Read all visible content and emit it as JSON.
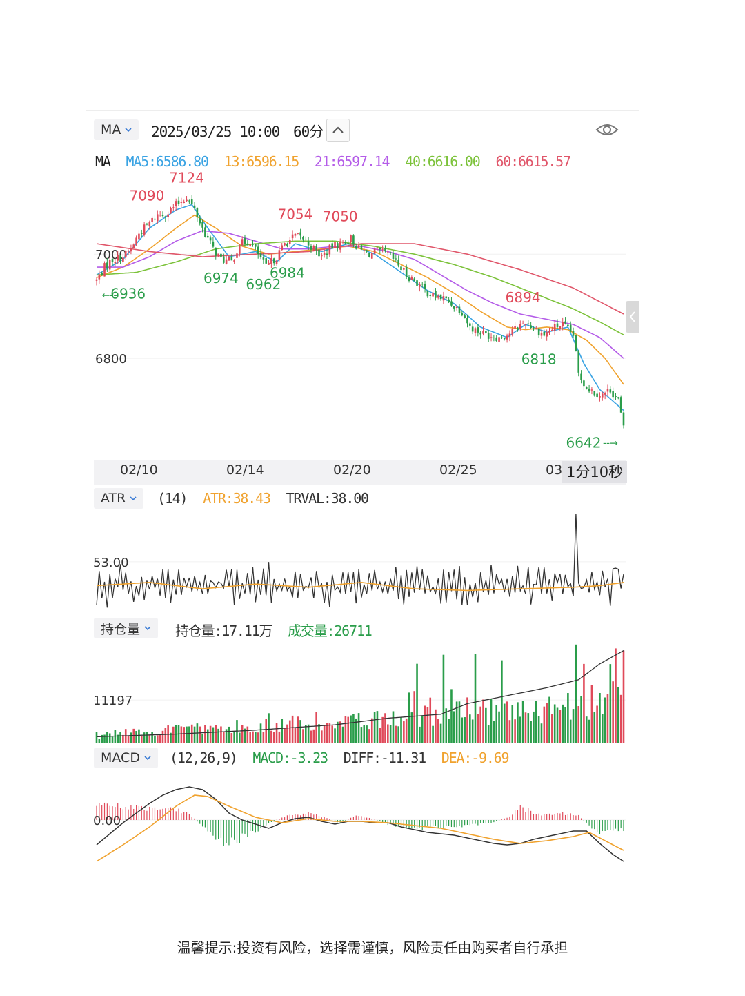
{
  "header": {
    "indicator": "MA",
    "datetime": "2025/03/25 10:00",
    "period": "60分"
  },
  "ma_legend": {
    "name": "MA",
    "items": [
      {
        "text": "MA5:6586.80",
        "color": "#3aa3e3"
      },
      {
        "text": "13:6596.15",
        "color": "#f0a22e"
      },
      {
        "text": "21:6597.14",
        "color": "#b45ce8"
      },
      {
        "text": "40:6616.00",
        "color": "#7cc23a"
      },
      {
        "text": "60:6615.57",
        "color": "#e0566a"
      }
    ]
  },
  "colors": {
    "up": "#e04a5a",
    "down": "#2a9d4a",
    "ma5": "#3aa3e3",
    "ma13": "#f0a22e",
    "ma21": "#b45ce8",
    "ma40": "#7cc23a",
    "ma60": "#e0566a",
    "line": "#333333"
  },
  "chart_data": [
    {
      "type": "candlestick",
      "ylim": [
        6620,
        7150
      ],
      "y_tick_labels": [
        "7000",
        "6800"
      ],
      "y_ticks": [
        7000,
        6800
      ],
      "x_tick_labels": [
        "02/10",
        "02/14",
        "02/20",
        "02/25",
        "03"
      ],
      "countdown": "1分10秒",
      "annotations": [
        {
          "text": "7124",
          "kind": "high",
          "index": 34
        },
        {
          "text": "7090",
          "kind": "high",
          "index": 19
        },
        {
          "text": "7054",
          "kind": "high",
          "index": 75
        },
        {
          "text": "7050",
          "kind": "high",
          "index": 92
        },
        {
          "text": "6894",
          "kind": "high",
          "index": 161
        },
        {
          "text": "6936",
          "kind": "low",
          "index": 2
        },
        {
          "text": "6974",
          "kind": "low",
          "index": 47
        },
        {
          "text": "6962",
          "kind": "low",
          "index": 63
        },
        {
          "text": "6984",
          "kind": "low",
          "index": 72
        },
        {
          "text": "6818",
          "kind": "low",
          "index": 167
        },
        {
          "text": "6642",
          "kind": "low",
          "index": 199
        }
      ],
      "close_path": [
        [
          0,
          6950
        ],
        [
          3,
          6975
        ],
        [
          6,
          6990
        ],
        [
          10,
          6995
        ],
        [
          13,
          7010
        ],
        [
          16,
          7040
        ],
        [
          20,
          7060
        ],
        [
          23,
          7075
        ],
        [
          27,
          7080
        ],
        [
          30,
          7095
        ],
        [
          34,
          7110
        ],
        [
          37,
          7085
        ],
        [
          40,
          7050
        ],
        [
          44,
          7010
        ],
        [
          47,
          6990
        ],
        [
          51,
          6985
        ],
        [
          54,
          7020
        ],
        [
          58,
          7025
        ],
        [
          61,
          7000
        ],
        [
          64,
          6975
        ],
        [
          68,
          6995
        ],
        [
          71,
          7020
        ],
        [
          75,
          7035
        ],
        [
          78,
          7030
        ],
        [
          82,
          7010
        ],
        [
          85,
          6995
        ],
        [
          89,
          7015
        ],
        [
          92,
          7020
        ],
        [
          96,
          7030
        ],
        [
          99,
          7010
        ],
        [
          103,
          7000
        ],
        [
          106,
          7005
        ],
        [
          110,
          7000
        ],
        [
          113,
          6985
        ],
        [
          117,
          6960
        ],
        [
          120,
          6950
        ],
        [
          124,
          6930
        ],
        [
          127,
          6920
        ],
        [
          131,
          6915
        ],
        [
          134,
          6905
        ],
        [
          138,
          6890
        ],
        [
          141,
          6860
        ],
        [
          145,
          6850
        ],
        [
          148,
          6845
        ],
        [
          152,
          6840
        ],
        [
          155,
          6845
        ],
        [
          159,
          6860
        ],
        [
          162,
          6870
        ],
        [
          166,
          6855
        ],
        [
          169,
          6845
        ],
        [
          173,
          6860
        ],
        [
          176,
          6865
        ],
        [
          180,
          6845
        ],
        [
          182,
          6770
        ],
        [
          185,
          6745
        ],
        [
          188,
          6735
        ],
        [
          191,
          6730
        ],
        [
          194,
          6740
        ],
        [
          197,
          6720
        ],
        [
          199,
          6665
        ]
      ],
      "ma_paths": {
        "ma5": [
          [
            0,
            6960
          ],
          [
            10,
            6990
          ],
          [
            20,
            7050
          ],
          [
            30,
            7085
          ],
          [
            36,
            7095
          ],
          [
            42,
            7050
          ],
          [
            50,
            6995
          ],
          [
            60,
            7005
          ],
          [
            68,
            6985
          ],
          [
            75,
            7020
          ],
          [
            85,
            7005
          ],
          [
            95,
            7020
          ],
          [
            105,
            7000
          ],
          [
            115,
            6965
          ],
          [
            125,
            6930
          ],
          [
            135,
            6905
          ],
          [
            145,
            6860
          ],
          [
            155,
            6840
          ],
          [
            162,
            6865
          ],
          [
            170,
            6850
          ],
          [
            178,
            6860
          ],
          [
            184,
            6790
          ],
          [
            190,
            6740
          ],
          [
            199,
            6700
          ]
        ],
        "ma13": [
          [
            0,
            6955
          ],
          [
            10,
            6975
          ],
          [
            20,
            7010
          ],
          [
            30,
            7050
          ],
          [
            37,
            7075
          ],
          [
            45,
            7050
          ],
          [
            55,
            7015
          ],
          [
            65,
            7000
          ],
          [
            75,
            7005
          ],
          [
            85,
            7010
          ],
          [
            95,
            7015
          ],
          [
            105,
            7005
          ],
          [
            115,
            6980
          ],
          [
            125,
            6955
          ],
          [
            135,
            6925
          ],
          [
            145,
            6890
          ],
          [
            155,
            6860
          ],
          [
            162,
            6855
          ],
          [
            170,
            6860
          ],
          [
            178,
            6855
          ],
          [
            185,
            6835
          ],
          [
            192,
            6800
          ],
          [
            199,
            6750
          ]
        ],
        "ma21": [
          [
            0,
            6975
          ],
          [
            10,
            6975
          ],
          [
            20,
            6995
          ],
          [
            30,
            7025
          ],
          [
            40,
            7045
          ],
          [
            50,
            7040
          ],
          [
            60,
            7025
          ],
          [
            70,
            7010
          ],
          [
            80,
            7010
          ],
          [
            90,
            7015
          ],
          [
            100,
            7015
          ],
          [
            110,
            7005
          ],
          [
            120,
            6990
          ],
          [
            130,
            6960
          ],
          [
            140,
            6930
          ],
          [
            150,
            6905
          ],
          [
            160,
            6885
          ],
          [
            170,
            6875
          ],
          [
            180,
            6865
          ],
          [
            190,
            6840
          ],
          [
            199,
            6800
          ]
        ],
        "ma40": [
          [
            0,
            6960
          ],
          [
            15,
            6965
          ],
          [
            30,
            6985
          ],
          [
            45,
            7010
          ],
          [
            60,
            7020
          ],
          [
            75,
            7025
          ],
          [
            90,
            7025
          ],
          [
            105,
            7015
          ],
          [
            120,
            7000
          ],
          [
            135,
            6980
          ],
          [
            150,
            6955
          ],
          [
            165,
            6925
          ],
          [
            180,
            6895
          ],
          [
            190,
            6870
          ],
          [
            199,
            6845
          ]
        ],
        "ma60": [
          [
            0,
            7020
          ],
          [
            20,
            7005
          ],
          [
            40,
            6995
          ],
          [
            60,
            7000
          ],
          [
            80,
            7005
          ],
          [
            100,
            7020
          ],
          [
            120,
            7020
          ],
          [
            140,
            7000
          ],
          [
            160,
            6970
          ],
          [
            180,
            6935
          ],
          [
            199,
            6885
          ]
        ]
      }
    },
    {
      "type": "line",
      "name": "ATR",
      "params": "(14)",
      "atr_label": "ATR:38.43",
      "trval_label": "TRVAL:38.00",
      "y_tick_label": "53.00",
      "y_tick": 53,
      "ylim": [
        20,
        85
      ],
      "atr_path": [
        [
          0,
          38
        ],
        [
          20,
          40
        ],
        [
          40,
          36
        ],
        [
          60,
          39
        ],
        [
          80,
          37
        ],
        [
          100,
          40
        ],
        [
          120,
          36
        ],
        [
          140,
          35
        ],
        [
          160,
          36
        ],
        [
          180,
          37
        ],
        [
          190,
          38
        ],
        [
          199,
          40
        ]
      ]
    },
    {
      "type": "bar",
      "name": "持仓量",
      "oi_label": "持仓量:17.11万",
      "vol_label": "成交量:26711",
      "y_tick_label": "11197",
      "y_tick": 11197,
      "ylim": [
        0,
        26711
      ],
      "oi_path": [
        [
          0,
          0.05
        ],
        [
          30,
          0.07
        ],
        [
          60,
          0.1
        ],
        [
          90,
          0.14
        ],
        [
          110,
          0.19
        ],
        [
          130,
          0.22
        ],
        [
          140,
          0.3
        ],
        [
          155,
          0.36
        ],
        [
          170,
          0.42
        ],
        [
          182,
          0.48
        ],
        [
          190,
          0.6
        ],
        [
          199,
          0.7
        ]
      ],
      "spikes": [
        [
          120,
          13500
        ],
        [
          134,
          14000
        ],
        [
          145,
          9500
        ],
        [
          155,
          10800
        ],
        [
          161,
          11000
        ],
        [
          169,
          9500
        ],
        [
          176,
          10000
        ],
        [
          181,
          25500
        ],
        [
          184,
          20500
        ],
        [
          187,
          15000
        ],
        [
          190,
          13000
        ],
        [
          196,
          24500
        ],
        [
          198,
          12500
        ]
      ]
    },
    {
      "type": "bar",
      "name": "MACD",
      "params": "(12,26,9)",
      "macd_label": "MACD:-3.23",
      "diff_label": "DIFF:-11.31",
      "dea_label": "DEA:-9.69",
      "y_tick_label": "0.00",
      "y_tick": 0,
      "ylim": [
        -42,
        33
      ],
      "diff_path": [
        [
          0,
          -18
        ],
        [
          5,
          -10
        ],
        [
          10,
          -2
        ],
        [
          15,
          5
        ],
        [
          20,
          12
        ],
        [
          25,
          18
        ],
        [
          30,
          22
        ],
        [
          35,
          24
        ],
        [
          40,
          22
        ],
        [
          45,
          15
        ],
        [
          50,
          5
        ],
        [
          55,
          0
        ],
        [
          60,
          -3
        ],
        [
          65,
          -6
        ],
        [
          70,
          -2
        ],
        [
          75,
          1
        ],
        [
          80,
          2
        ],
        [
          85,
          -1
        ],
        [
          90,
          -3
        ],
        [
          95,
          -1
        ],
        [
          100,
          -1
        ],
        [
          105,
          -2
        ],
        [
          110,
          -2
        ],
        [
          115,
          -5
        ],
        [
          120,
          -7
        ],
        [
          125,
          -9
        ],
        [
          130,
          -10
        ],
        [
          135,
          -11
        ],
        [
          140,
          -13
        ],
        [
          145,
          -15
        ],
        [
          150,
          -17
        ],
        [
          155,
          -18
        ],
        [
          160,
          -17
        ],
        [
          165,
          -14
        ],
        [
          170,
          -12
        ],
        [
          175,
          -10
        ],
        [
          180,
          -8
        ],
        [
          185,
          -8
        ],
        [
          190,
          -17
        ],
        [
          195,
          -25
        ],
        [
          199,
          -30
        ]
      ],
      "dea_path": [
        [
          0,
          -30
        ],
        [
          10,
          -18
        ],
        [
          20,
          -5
        ],
        [
          30,
          10
        ],
        [
          37,
          18
        ],
        [
          42,
          17
        ],
        [
          50,
          10
        ],
        [
          60,
          2
        ],
        [
          70,
          -2
        ],
        [
          80,
          1
        ],
        [
          90,
          -1
        ],
        [
          100,
          -1
        ],
        [
          110,
          -2
        ],
        [
          120,
          -4
        ],
        [
          130,
          -6
        ],
        [
          140,
          -10
        ],
        [
          150,
          -14
        ],
        [
          160,
          -17
        ],
        [
          170,
          -15
        ],
        [
          180,
          -12
        ],
        [
          186,
          -9
        ],
        [
          192,
          -15
        ],
        [
          199,
          -22
        ]
      ],
      "hist_segments": [
        [
          0,
          12
        ],
        [
          15,
          9
        ],
        [
          30,
          8
        ],
        [
          36,
          3
        ],
        [
          40,
          -5
        ],
        [
          48,
          -17
        ],
        [
          55,
          -13
        ],
        [
          60,
          -8
        ],
        [
          65,
          -2
        ],
        [
          72,
          3
        ],
        [
          80,
          5
        ],
        [
          86,
          2
        ],
        [
          92,
          -2
        ],
        [
          98,
          3
        ],
        [
          104,
          1
        ],
        [
          110,
          -3
        ],
        [
          120,
          -6
        ],
        [
          130,
          -5
        ],
        [
          140,
          -4
        ],
        [
          150,
          -2
        ],
        [
          156,
          3
        ],
        [
          160,
          9
        ],
        [
          168,
          4
        ],
        [
          176,
          5
        ],
        [
          182,
          3
        ],
        [
          186,
          -4
        ],
        [
          190,
          -9
        ],
        [
          196,
          -6
        ],
        [
          199,
          -8
        ]
      ]
    }
  ],
  "footer": "温馨提示:投资有风险，选择需谨慎，风险责任由购买者自行承担"
}
